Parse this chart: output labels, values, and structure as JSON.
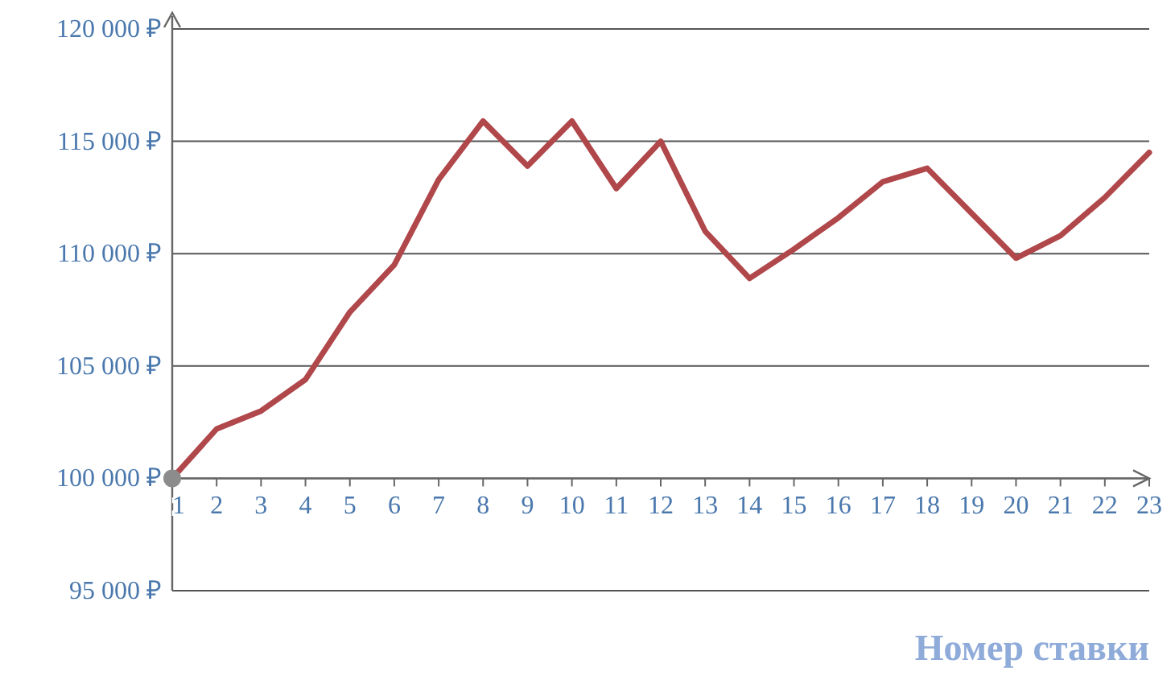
{
  "chart_data": {
    "type": "line",
    "xlabel": "Номер ставки",
    "x": [
      1,
      2,
      3,
      4,
      5,
      6,
      7,
      8,
      9,
      10,
      11,
      12,
      13,
      14,
      15,
      16,
      17,
      18,
      19,
      20,
      21,
      22,
      23
    ],
    "series": [
      {
        "color": "#b0474a",
        "marker": "none",
        "values": [
          100000,
          102200,
          103000,
          104400,
          107400,
          109500,
          113300,
          115900,
          113900,
          115900,
          112900,
          115000,
          111000,
          108900,
          110200,
          111600,
          113200,
          113800,
          111800,
          109800,
          110800,
          112500,
          114500
        ]
      },
      {
        "type": "scatter",
        "marker": "circle",
        "color": "#8c8c8c",
        "x": [
          1
        ],
        "values": [
          100000
        ]
      }
    ],
    "xlim": [
      1,
      23
    ],
    "xticks": [
      1,
      2,
      3,
      4,
      5,
      6,
      7,
      8,
      9,
      10,
      11,
      12,
      13,
      14,
      15,
      16,
      17,
      18,
      19,
      20,
      21,
      22,
      23
    ],
    "ylim": [
      95000,
      120000
    ],
    "yticks": [
      {
        "value": 95000,
        "label": "95 000 ₽"
      },
      {
        "value": 100000,
        "label": "100 000 ₽"
      },
      {
        "value": 105000,
        "label": "105 000 ₽"
      },
      {
        "value": 110000,
        "label": "110 000 ₽"
      },
      {
        "value": 115000,
        "label": "115 000 ₽"
      },
      {
        "value": 120000,
        "label": "120 000 ₽"
      }
    ],
    "grid": "y",
    "line_style": "solid"
  }
}
